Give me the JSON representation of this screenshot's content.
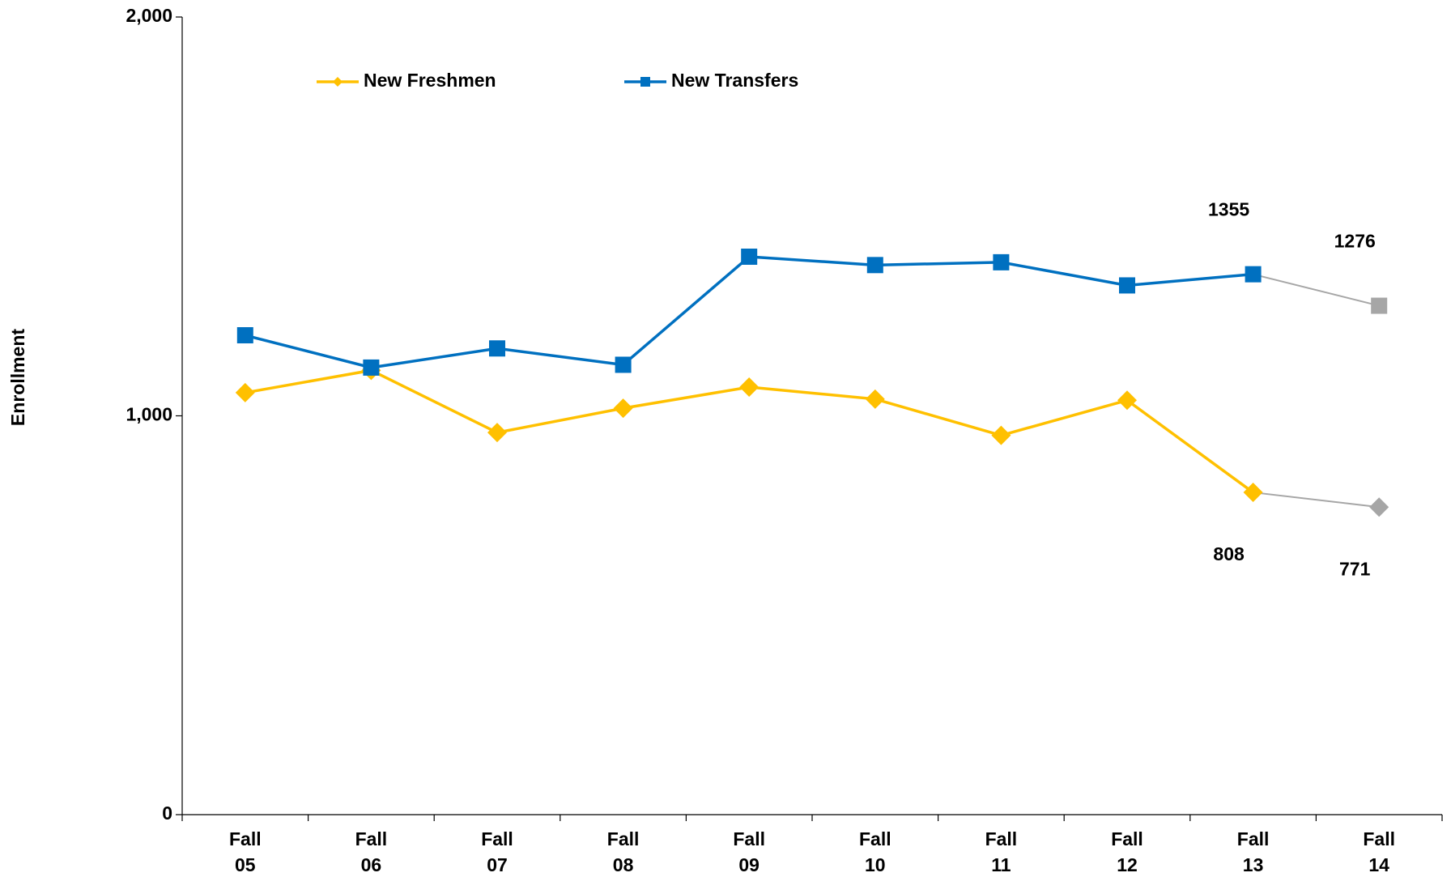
{
  "chart_data": {
    "type": "line",
    "y_label": "Enrollment",
    "categories": [
      "Fall 05",
      "Fall 06",
      "Fall 07",
      "Fall 08",
      "Fall 09",
      "Fall 10",
      "Fall 11",
      "Fall 12",
      "Fall 13",
      "Fall 14"
    ],
    "series": [
      {
        "name": "New Freshmen",
        "color": "#ffc000",
        "marker": "diamond",
        "values": [
          1058,
          1114,
          958,
          1019,
          1072,
          1042,
          951,
          1039,
          808,
          771
        ],
        "value_labels": [
          null,
          null,
          null,
          null,
          null,
          null,
          null,
          null,
          "808",
          "771"
        ]
      },
      {
        "name": "New Transfers",
        "color": "#0070c0",
        "marker": "square",
        "values": [
          1202,
          1121,
          1169,
          1128,
          1399,
          1378,
          1385,
          1327,
          1355,
          1276
        ],
        "value_labels": [
          null,
          null,
          null,
          null,
          null,
          null,
          null,
          null,
          "1355",
          "1276"
        ]
      }
    ],
    "last_point_color": "#a6a6a6",
    "ylim": [
      0,
      2000
    ],
    "yticks": [
      0,
      {
        "value": 1000,
        "label": "1,000"
      },
      {
        "value": 2000,
        "label": "2,000"
      }
    ],
    "legend": "top left"
  }
}
